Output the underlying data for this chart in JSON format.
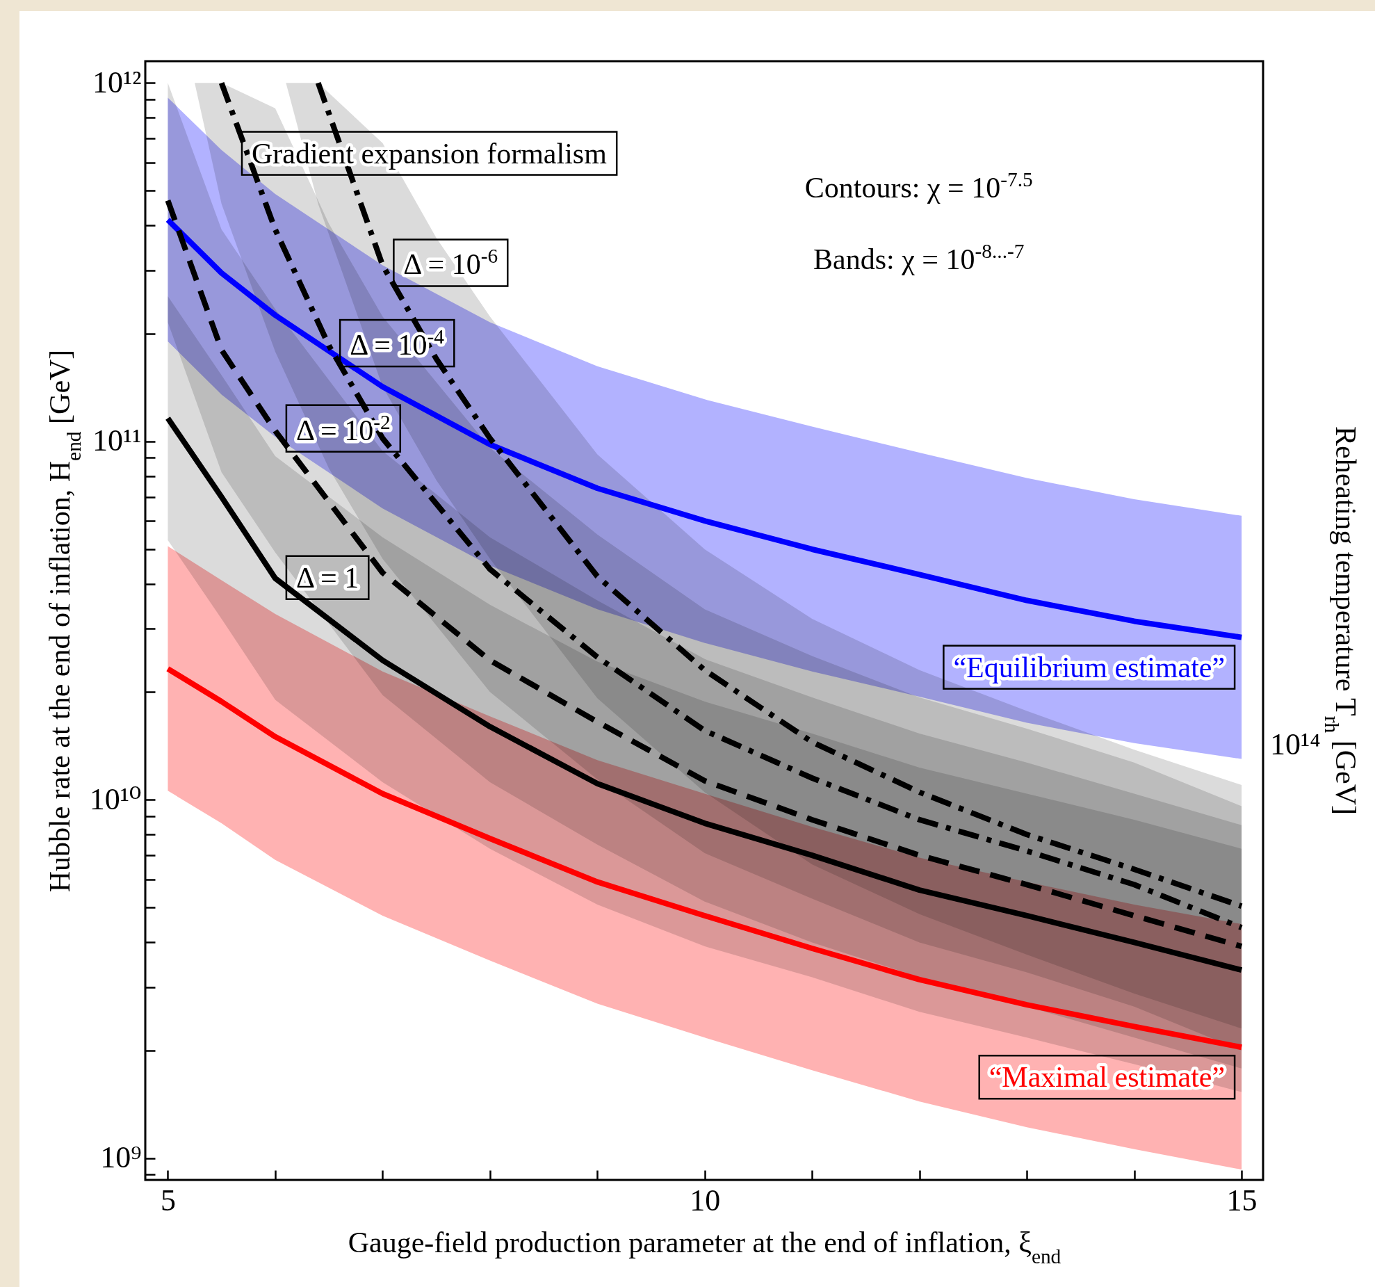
{
  "chart_data": {
    "type": "line",
    "xlabel": "Gauge-field production parameter at the end of inflation, ξ$_{end}$",
    "ylabel": "Hubble rate at the end of inflation, H$_{end}$ [GeV]",
    "y2label": "Reheating temperature T$_{rh}$ [GeV]",
    "log": "y",
    "xlim": [
      4.79,
      15.2
    ],
    "xticks": [
      5,
      {
        "value": 6,
        "label": null
      },
      {
        "value": 7,
        "label": null
      },
      {
        "value": 8,
        "label": null
      },
      {
        "value": 9,
        "label": null
      },
      10,
      {
        "value": 11,
        "label": null
      },
      {
        "value": 12,
        "label": null
      },
      {
        "value": 13,
        "label": null
      },
      {
        "value": 14,
        "label": null
      },
      15
    ],
    "ylim": [
      870000000.0,
      1150000000000.0
    ],
    "yticks": [
      {
        "value": 900000000.0,
        "label": null
      },
      {
        "value": 1000000000.0,
        "label": "10⁹"
      },
      {
        "value": 2000000000.0,
        "label": null
      },
      {
        "value": 3000000000.0,
        "label": null
      },
      {
        "value": 4000000000.0,
        "label": null
      },
      {
        "value": 5000000000.0,
        "label": null
      },
      {
        "value": 6000000000.0,
        "label": null
      },
      {
        "value": 7000000000.0,
        "label": null
      },
      {
        "value": 8000000000.0,
        "label": null
      },
      {
        "value": 9000000000.0,
        "label": null
      },
      {
        "value": 10000000000.0,
        "label": "10¹⁰"
      },
      {
        "value": 20000000000.0,
        "label": null
      },
      {
        "value": 30000000000.0,
        "label": null
      },
      {
        "value": 40000000000.0,
        "label": null
      },
      {
        "value": 50000000000.0,
        "label": null
      },
      {
        "value": 60000000000.0,
        "label": null
      },
      {
        "value": 70000000000.0,
        "label": null
      },
      {
        "value": 80000000000.0,
        "label": null
      },
      {
        "value": 90000000000.0,
        "label": null
      },
      {
        "value": 100000000000.0,
        "label": "10¹¹"
      },
      {
        "value": 200000000000.0,
        "label": null
      },
      {
        "value": 300000000000.0,
        "label": null
      },
      {
        "value": 400000000000.0,
        "label": null
      },
      {
        "value": 500000000000.0,
        "label": null
      },
      {
        "value": 600000000000.0,
        "label": null
      },
      {
        "value": 700000000000.0,
        "label": null
      },
      {
        "value": 800000000000.0,
        "label": null
      },
      {
        "value": 900000000000.0,
        "label": null
      },
      {
        "value": 1000000000000.0,
        "label": "10¹²"
      }
    ],
    "series": [
      {
        "name": "“Equilibrium estimate”",
        "color": "#0000ff",
        "line_style": "solid",
        "x": [
          5,
          5.5,
          6,
          7,
          8,
          9,
          10,
          11,
          12,
          13,
          14,
          15
        ],
        "values": [
          415000000000.0,
          295000000000.0,
          225000000000.0,
          142000000000.0,
          98000000000.0,
          74000000000.0,
          60000000000.0,
          50000000000.0,
          42500000000.0,
          36000000000.0,
          31500000000.0,
          28400000000.0
        ],
        "upper": [
          910000000000.0,
          650000000000.0,
          490000000000.0,
          310000000000.0,
          215000000000.0,
          162000000000.0,
          131000000000.0,
          110000000000.0,
          93000000000.0,
          79000000000.0,
          69000000000.0,
          62000000000.0
        ],
        "lower": [
          190000000000.0,
          135000000000.0,
          103000000000.0,
          65000000000.0,
          45000000000.0,
          34000000000.0,
          27400000000.0,
          22800000000.0,
          19400000000.0,
          16400000000.0,
          14400000000.0,
          13000000000.0
        ]
      },
      {
        "name": "“Maximal estimate”",
        "color": "#ff0000",
        "line_style": "solid",
        "x": [
          5,
          5.5,
          6,
          7,
          8,
          9,
          10,
          11,
          12,
          13,
          14,
          15
        ],
        "values": [
          23200000000.0,
          18800000000.0,
          15000000000.0,
          10400000000.0,
          7800000000.0,
          5900000000.0,
          4750000000.0,
          3850000000.0,
          3150000000.0,
          2680000000.0,
          2330000000.0,
          2040000000.0
        ],
        "upper": [
          51000000000.0,
          41000000000.0,
          33000000000.0,
          22800000000.0,
          17100000000.0,
          12900000000.0,
          10400000000.0,
          8400000000.0,
          6900000000.0,
          5900000000.0,
          5100000000.0,
          4500000000.0
        ],
        "lower": [
          10600000000.0,
          8600000000.0,
          6800000000.0,
          4750000000.0,
          3560000000.0,
          2700000000.0,
          2170000000.0,
          1760000000.0,
          1440000000.0,
          1220000000.0,
          1060000000.0,
          930000000.0
        ]
      },
      {
        "color": "#000000",
        "line_style": "solid",
        "x": [
          5,
          5.5,
          6,
          7,
          8,
          9,
          10,
          11,
          12,
          13,
          14,
          15
        ],
        "values": [
          116000000000.0,
          70000000000.0,
          41500000000.0,
          24500000000.0,
          16000000000.0,
          11100000000.0,
          8600000000.0,
          7000000000.0,
          5600000000.0,
          4750000000.0,
          4000000000.0,
          3350000000.0
        ],
        "upper": [
          254000000000.0,
          153000000000.0,
          91000000000.0,
          54000000000.0,
          35000000000.0,
          24300000000.0,
          18800000000.0,
          15300000000.0,
          12300000000.0,
          10400000000.0,
          8800000000.0,
          7300000000.0
        ],
        "lower": [
          53000000000.0,
          32000000000.0,
          19000000000.0,
          11200000000.0,
          7300000000.0,
          5100000000.0,
          3900000000.0,
          3200000000.0,
          2560000000.0,
          2170000000.0,
          1830000000.0,
          1530000000.0
        ]
      },
      {
        "color": "#000000",
        "line_style": "dashed",
        "x": [
          5,
          5.5,
          6,
          7,
          8,
          9,
          10,
          11,
          12,
          13,
          14,
          15
        ],
        "values": [
          470000000000.0,
          180000000000.0,
          107000000000.0,
          43000000000.0,
          24500000000.0,
          16500000000.0,
          11300000000.0,
          8800000000.0,
          7000000000.0,
          5800000000.0,
          4750000000.0,
          3900000000.0
        ],
        "upper": [
          1000000000000.0,
          390000000000.0,
          234000000000.0,
          94000000000.0,
          54000000000.0,
          36000000000.0,
          24700000000.0,
          19300000000.0,
          15300000000.0,
          12700000000.0,
          10400000000.0,
          8500000000.0
        ],
        "lower": [
          215000000000.0,
          82000000000.0,
          49000000000.0,
          19600000000.0,
          11200000000.0,
          7500000000.0,
          5200000000.0,
          4000000000.0,
          3200000000.0,
          2650000000.0,
          2170000000.0,
          1780000000.0
        ]
      },
      {
        "color": "#000000",
        "line_style": "dashdot",
        "x": [
          5.25,
          5.5,
          6,
          6.5,
          7,
          8,
          9,
          10,
          11,
          12,
          13,
          14,
          15
        ],
        "values": [
          null,
          1000000000000.0,
          390000000000.0,
          185000000000.0,
          102000000000.0,
          44000000000.0,
          25000000000.0,
          15600000000.0,
          11500000000.0,
          8800000000.0,
          7200000000.0,
          5800000000.0,
          4400000000.0
        ],
        "upper": [
          1000000000000.0,
          1000000000000.0,
          850000000000.0,
          405000000000.0,
          223000000000.0,
          96000000000.0,
          55000000000.0,
          34000000000.0,
          25200000000.0,
          19300000000.0,
          15800000000.0,
          12700000000.0,
          9600000000.0
        ],
        "lower": [
          1000000000000.0,
          460000000000.0,
          178000000000.0,
          84000000000.0,
          47000000000.0,
          20000000000.0,
          11400000000.0,
          7100000000.0,
          5300000000.0,
          4000000000.0,
          3300000000.0,
          2650000000.0,
          2000000000.0
        ]
      },
      {
        "color": "#000000",
        "line_style": "dashdot",
        "x": [
          6.1,
          6.4,
          7,
          7.5,
          8,
          9,
          10,
          11,
          12,
          13,
          14,
          15
        ],
        "values": [
          null,
          1000000000000.0,
          310000000000.0,
          170000000000.0,
          102000000000.0,
          42000000000.0,
          23000000000.0,
          14500000000.0,
          10500000000.0,
          8000000000.0,
          6400000000.0,
          5050000000.0
        ],
        "upper": [
          1000000000000.0,
          1000000000000.0,
          680000000000.0,
          370000000000.0,
          223000000000.0,
          92000000000.0,
          50000000000.0,
          32000000000.0,
          23000000000.0,
          17700000000.0,
          13800000000.0,
          11000000000.0
        ],
        "lower": [
          1000000000000.0,
          460000000000.0,
          142000000000.0,
          78000000000.0,
          47000000000.0,
          19200000000.0,
          10500000000.0,
          6600000000.0,
          4800000000.0,
          3700000000.0,
          2880000000.0,
          2300000000.0
        ]
      }
    ],
    "annotations": [
      "Gradient expansion formalism",
      "Contours: χ = 10$^{-7.5}$",
      "Bands: χ = 10$^{-8...-7}$",
      {
        "text": "Δ = 10$^{-6}$",
        "x": 7,
        "y": 310000000000.0
      },
      {
        "text": "Δ = 10$^{-4}$",
        "x": 6.5,
        "y": 185000000000.0
      },
      {
        "text": "Δ = 10$^{-2}$",
        "x": 6,
        "y": 107000000000.0
      },
      {
        "text": "Δ = 1",
        "x": 6,
        "y": 41500000000.0
      },
      "10¹⁴"
    ]
  }
}
